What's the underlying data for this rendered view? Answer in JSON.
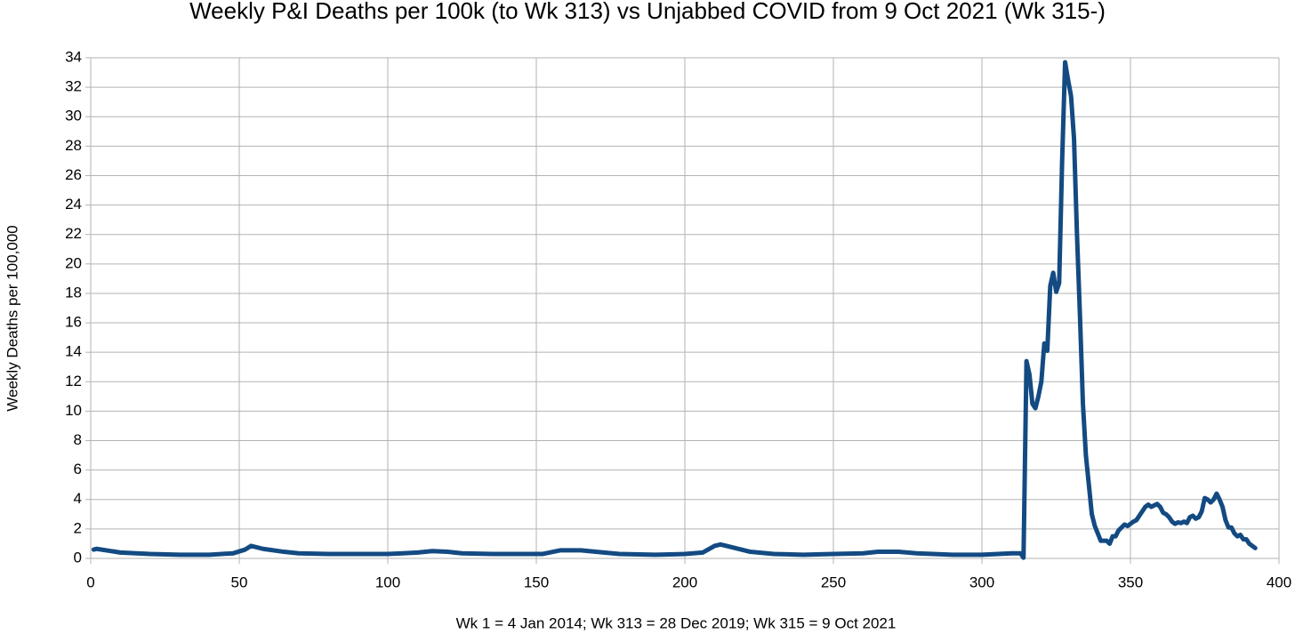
{
  "chart_data": {
    "type": "line",
    "title": "Weekly P&I Deaths per 100k (to Wk 313) vs Unjabbed COVID from 9 Oct 2021 (Wk 315-)",
    "xlabel": "Wk 1 = 4 Jan 2014; Wk 313 = 28 Dec 2019; Wk 315 = 9 Oct 2021",
    "ylabel": "Weekly Deaths per 100,000",
    "x": [
      1,
      2,
      10,
      20,
      30,
      40,
      48,
      52,
      54,
      58,
      65,
      70,
      80,
      90,
      100,
      105,
      110,
      115,
      120,
      125,
      135,
      145,
      152,
      158,
      165,
      170,
      178,
      190,
      200,
      206,
      210,
      212,
      216,
      222,
      230,
      240,
      250,
      260,
      265,
      272,
      278,
      290,
      300,
      310,
      313,
      314,
      315,
      316,
      317,
      318,
      319,
      320,
      321,
      322,
      323,
      324,
      325,
      326,
      327,
      328,
      329,
      330,
      331,
      332,
      333,
      334,
      335,
      336,
      337,
      338,
      339,
      340,
      342,
      343,
      344,
      345,
      346,
      348,
      349,
      351,
      352,
      354,
      355,
      356,
      357,
      358,
      359,
      360,
      361,
      362,
      363,
      364,
      365,
      366,
      367,
      368,
      369,
      370,
      371,
      372,
      373,
      374,
      375,
      376,
      377,
      378,
      379,
      380,
      381,
      382,
      383,
      384,
      385,
      386,
      387,
      388,
      389,
      390,
      391,
      392
    ],
    "series": [
      {
        "color": "#134a82",
        "values": [
          0.6,
          0.65,
          0.4,
          0.3,
          0.25,
          0.25,
          0.35,
          0.6,
          0.85,
          0.65,
          0.45,
          0.35,
          0.3,
          0.3,
          0.3,
          0.35,
          0.4,
          0.5,
          0.45,
          0.35,
          0.3,
          0.3,
          0.3,
          0.55,
          0.55,
          0.45,
          0.3,
          0.25,
          0.3,
          0.4,
          0.85,
          0.95,
          0.75,
          0.45,
          0.3,
          0.25,
          0.3,
          0.35,
          0.45,
          0.45,
          0.35,
          0.25,
          0.25,
          0.35,
          0.35,
          0.05,
          13.4,
          12.5,
          10.5,
          10.2,
          11,
          12,
          14.6,
          14.1,
          18.5,
          19.4,
          18.1,
          18.7,
          27,
          33.7,
          32.5,
          31.4,
          28.5,
          22,
          16.5,
          10.5,
          7,
          5,
          3,
          2.2,
          1.7,
          1.2,
          1.2,
          1.0,
          1.5,
          1.5,
          1.9,
          2.3,
          2.2,
          2.5,
          2.6,
          3.2,
          3.5,
          3.65,
          3.5,
          3.6,
          3.7,
          3.5,
          3.1,
          3.0,
          2.8,
          2.5,
          2.35,
          2.45,
          2.4,
          2.5,
          2.4,
          2.8,
          2.9,
          2.7,
          2.8,
          3.2,
          4.1,
          4.0,
          3.8,
          4.0,
          4.4,
          4.0,
          3.5,
          2.6,
          2.1,
          2.1,
          1.7,
          1.5,
          1.6,
          1.3,
          1.3,
          1.0,
          0.85,
          0.7
        ]
      }
    ],
    "xlim": [
      0,
      400
    ],
    "xticks": [
      0,
      50,
      100,
      150,
      200,
      250,
      300,
      350,
      400
    ],
    "ylim": [
      0,
      34
    ],
    "yticks": [
      0,
      2,
      4,
      6,
      8,
      10,
      12,
      14,
      16,
      18,
      20,
      22,
      24,
      26,
      28,
      30,
      32,
      34
    ],
    "grid": true
  }
}
